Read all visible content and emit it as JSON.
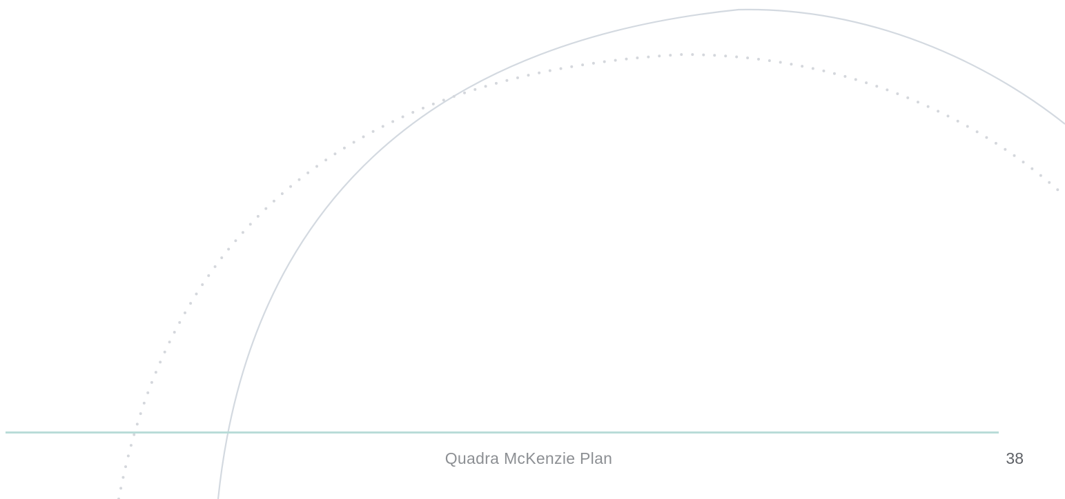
{
  "footer": {
    "document_title": "Quadra McKenzie Plan",
    "page_number": "38"
  },
  "colors": {
    "background": "#ffffff",
    "footer_rule": "#b9dcd8",
    "arc_solid": "#d3d9e0",
    "arc_dotted": "#d4d7dc",
    "footer_text": "#8c8f93",
    "page_number_text": "#5e6166"
  }
}
